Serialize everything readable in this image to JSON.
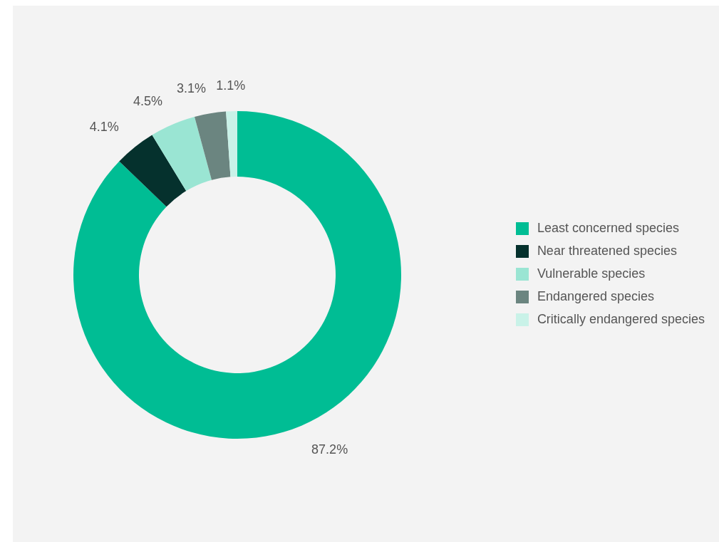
{
  "chart_data": {
    "type": "donut",
    "categories": [
      "Least concerned species",
      "Near threatened species",
      "Vulnerable species",
      "Endangered species",
      "Critically endangered species"
    ],
    "values": [
      87.2,
      4.1,
      4.5,
      3.1,
      1.1
    ],
    "colors": [
      "#00bd94",
      "#05312d",
      "#9ae5d3",
      "#6b8580",
      "#c9f2e8"
    ],
    "value_labels": [
      "87.2%",
      "4.1%",
      "4.5%",
      "3.1%",
      "1.1%"
    ],
    "legend": "right"
  }
}
